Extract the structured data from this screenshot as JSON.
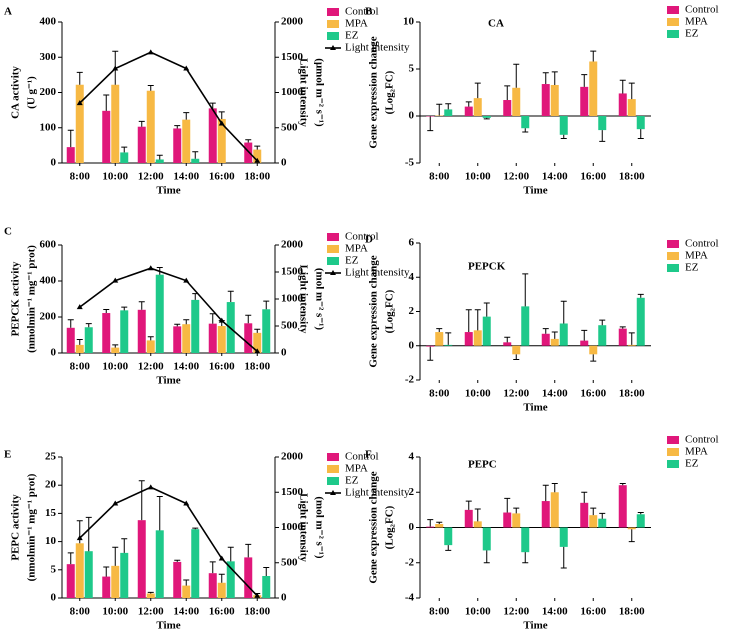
{
  "chart_data": [
    {
      "panel": "A",
      "type": "bar",
      "x_label": "Time",
      "y_label": [
        "CA activity",
        "(U g⁻¹)"
      ],
      "y2_label": [
        "Light intensity",
        "(μmol m⁻² s⁻¹)"
      ],
      "categories": [
        "8:00",
        "10:00",
        "12:00",
        "14:00",
        "16:00",
        "18:00"
      ],
      "series": [
        {
          "name": "Control",
          "color": "#e0177a",
          "values": [
            45,
            148,
            103,
            98,
            155,
            58
          ],
          "errors": [
            48,
            45,
            15,
            8,
            15,
            8
          ]
        },
        {
          "name": "MPA",
          "color": "#f7b944",
          "values": [
            222,
            222,
            205,
            123,
            125,
            38
          ],
          "errors": [
            35,
            95,
            15,
            20,
            20,
            10
          ]
        },
        {
          "name": "EZ",
          "color": "#1ec98a",
          "values": [
            0,
            30,
            10,
            12,
            0,
            0
          ],
          "errors": [
            0,
            15,
            12,
            20,
            0,
            0
          ]
        },
        {
          "name": "Light intensity",
          "type": "line",
          "axis": "y2",
          "color": "#000000",
          "values": [
            850,
            1340,
            1570,
            1340,
            560,
            30
          ]
        }
      ],
      "ylim": [
        0,
        400
      ],
      "yticks": [
        0,
        100,
        200,
        300,
        400
      ],
      "y2lim": [
        0,
        2000
      ],
      "y2ticks": [
        0,
        500,
        1000,
        1500,
        2000
      ]
    },
    {
      "panel": "B",
      "type": "bar",
      "title": "CA",
      "x_label": "Time",
      "y_label": [
        "Gene expression change",
        "(Log₂FC)"
      ],
      "categories": [
        "8:00",
        "10:00",
        "12:00",
        "14:00",
        "16:00",
        "18:00"
      ],
      "series": [
        {
          "name": "Control",
          "color": "#e0177a",
          "values": [
            -0.05,
            1.0,
            1.7,
            3.4,
            3.1,
            2.4
          ],
          "errors": [
            1.5,
            0.5,
            1.5,
            1.2,
            1.3,
            1.4
          ]
        },
        {
          "name": "MPA",
          "color": "#f7b944",
          "values": [
            0.05,
            1.9,
            3.0,
            3.3,
            5.8,
            1.8
          ],
          "errors": [
            1.2,
            1.6,
            2.5,
            1.4,
            1.1,
            1.7
          ]
        },
        {
          "name": "EZ",
          "color": "#1ec98a",
          "values": [
            0.7,
            -0.2,
            -1.3,
            -2.0,
            -1.5,
            -1.4
          ],
          "errors": [
            0.6,
            0.1,
            0.4,
            0.4,
            1.2,
            1.0
          ]
        }
      ],
      "ylim": [
        -5,
        10
      ],
      "yticks": [
        -5,
        0,
        5,
        10
      ]
    },
    {
      "panel": "C",
      "type": "bar",
      "x_label": "Time",
      "y_label": [
        "PEPCK activity",
        "(nmolmin⁻¹ mg⁻¹ prot)"
      ],
      "y2_label": [
        "Light intensity",
        "(mol m⁻² s⁻¹)"
      ],
      "categories": [
        "8:00",
        "10:00",
        "12:00",
        "14:00",
        "16:00",
        "18:00"
      ],
      "series": [
        {
          "name": "Control",
          "color": "#e0177a",
          "values": [
            140,
            222,
            240,
            148,
            163,
            165
          ],
          "errors": [
            45,
            20,
            45,
            12,
            55,
            45
          ]
        },
        {
          "name": "MPA",
          "color": "#f7b944",
          "values": [
            45,
            30,
            70,
            160,
            150,
            112
          ],
          "errors": [
            30,
            15,
            20,
            25,
            30,
            20
          ]
        },
        {
          "name": "EZ",
          "color": "#1ec98a",
          "values": [
            143,
            237,
            435,
            295,
            283,
            243
          ],
          "errors": [
            20,
            18,
            40,
            35,
            60,
            45
          ]
        },
        {
          "name": "Light intensity",
          "type": "line",
          "axis": "y2",
          "color": "#000000",
          "values": [
            850,
            1340,
            1570,
            1340,
            600,
            30
          ]
        }
      ],
      "ylim": [
        0,
        600
      ],
      "yticks": [
        0,
        200,
        400,
        600
      ],
      "y2lim": [
        0,
        2000
      ],
      "y2ticks": [
        0,
        500,
        1000,
        1500,
        2000
      ]
    },
    {
      "panel": "D",
      "type": "bar",
      "title": "PEPCK",
      "x_label": "Time",
      "y_label": [
        "Gene expression change",
        "(Log₂FC)"
      ],
      "categories": [
        "8:00",
        "10:00",
        "12:00",
        "14:00",
        "16:00",
        "18:00"
      ],
      "series": [
        {
          "name": "Control",
          "color": "#e0177a",
          "values": [
            -0.05,
            0.8,
            0.2,
            0.7,
            0.3,
            1.0
          ],
          "errors": [
            0.8,
            1.3,
            0.3,
            0.3,
            0.6,
            0.1
          ]
        },
        {
          "name": "MPA",
          "color": "#f7b944",
          "values": [
            0.8,
            0.9,
            -0.5,
            0.4,
            -0.5,
            0.05
          ],
          "errors": [
            0.2,
            1.2,
            0.3,
            0.4,
            0.4,
            0.7
          ]
        },
        {
          "name": "EZ",
          "color": "#1ec98a",
          "values": [
            0.05,
            1.7,
            2.3,
            1.3,
            1.2,
            2.8
          ],
          "errors": [
            0.7,
            0.8,
            1.9,
            1.3,
            0.3,
            0.2
          ]
        }
      ],
      "ylim": [
        -2,
        6
      ],
      "yticks": [
        -2,
        0,
        2,
        4,
        6
      ]
    },
    {
      "panel": "E",
      "type": "bar",
      "x_label": "Time",
      "y_label": [
        "PEPC activity",
        "(nmolmin⁻¹ mg⁻¹ prot)"
      ],
      "y2_label": [
        "Light intensity",
        "(mol m⁻² s⁻¹)"
      ],
      "categories": [
        "8:00",
        "10:00",
        "12:00",
        "14:00",
        "16:00",
        "18:00"
      ],
      "series": [
        {
          "name": "Control",
          "color": "#e0177a",
          "values": [
            6.0,
            3.8,
            13.8,
            6.4,
            4.4,
            7.2
          ],
          "errors": [
            2,
            1.7,
            7,
            0.3,
            2,
            2.3
          ]
        },
        {
          "name": "MPA",
          "color": "#f7b944",
          "values": [
            9.7,
            5.7,
            0.8,
            2.2,
            2.7,
            0.5
          ],
          "errors": [
            4,
            3.3,
            0.2,
            1,
            1.5,
            0.3
          ]
        },
        {
          "name": "EZ",
          "color": "#1ec98a",
          "values": [
            8.3,
            8.0,
            12.0,
            12.2,
            6.5,
            3.9
          ],
          "errors": [
            6,
            2.5,
            6,
            0.2,
            2.5,
            1.5
          ]
        },
        {
          "name": "Light intensity",
          "type": "line",
          "axis": "y2",
          "color": "#000000",
          "values": [
            850,
            1340,
            1570,
            1340,
            560,
            30
          ]
        }
      ],
      "ylim": [
        0,
        25
      ],
      "yticks": [
        0,
        5,
        10,
        15,
        20,
        25
      ],
      "y2lim": [
        0,
        2000
      ],
      "y2ticks": [
        0,
        500,
        1000,
        1500,
        2000
      ]
    },
    {
      "panel": "F",
      "type": "bar",
      "title": "PEPC",
      "x_label": "Time",
      "y_label": [
        "Gene expression change",
        "(Log₂FC)"
      ],
      "categories": [
        "8:00",
        "10:00",
        "12:00",
        "14:00",
        "16:00",
        "18:00"
      ],
      "series": [
        {
          "name": "Control",
          "color": "#e0177a",
          "values": [
            0.05,
            1.0,
            0.85,
            1.5,
            1.4,
            2.4
          ],
          "errors": [
            0.4,
            0.5,
            0.8,
            0.9,
            0.6,
            0.1
          ]
        },
        {
          "name": "MPA",
          "color": "#f7b944",
          "values": [
            0.2,
            0.35,
            0.8,
            2.0,
            0.7,
            -0.1
          ],
          "errors": [
            0.1,
            0.7,
            0.3,
            0.5,
            0.4,
            0.7
          ]
        },
        {
          "name": "EZ",
          "color": "#1ec98a",
          "values": [
            -1.0,
            -1.3,
            -1.4,
            -1.1,
            0.5,
            0.75
          ],
          "errors": [
            0.3,
            0.7,
            0.6,
            1.2,
            0.3,
            0.1
          ]
        }
      ],
      "ylim": [
        -4,
        4
      ],
      "yticks": [
        -4,
        -2,
        0,
        2,
        4
      ]
    }
  ]
}
